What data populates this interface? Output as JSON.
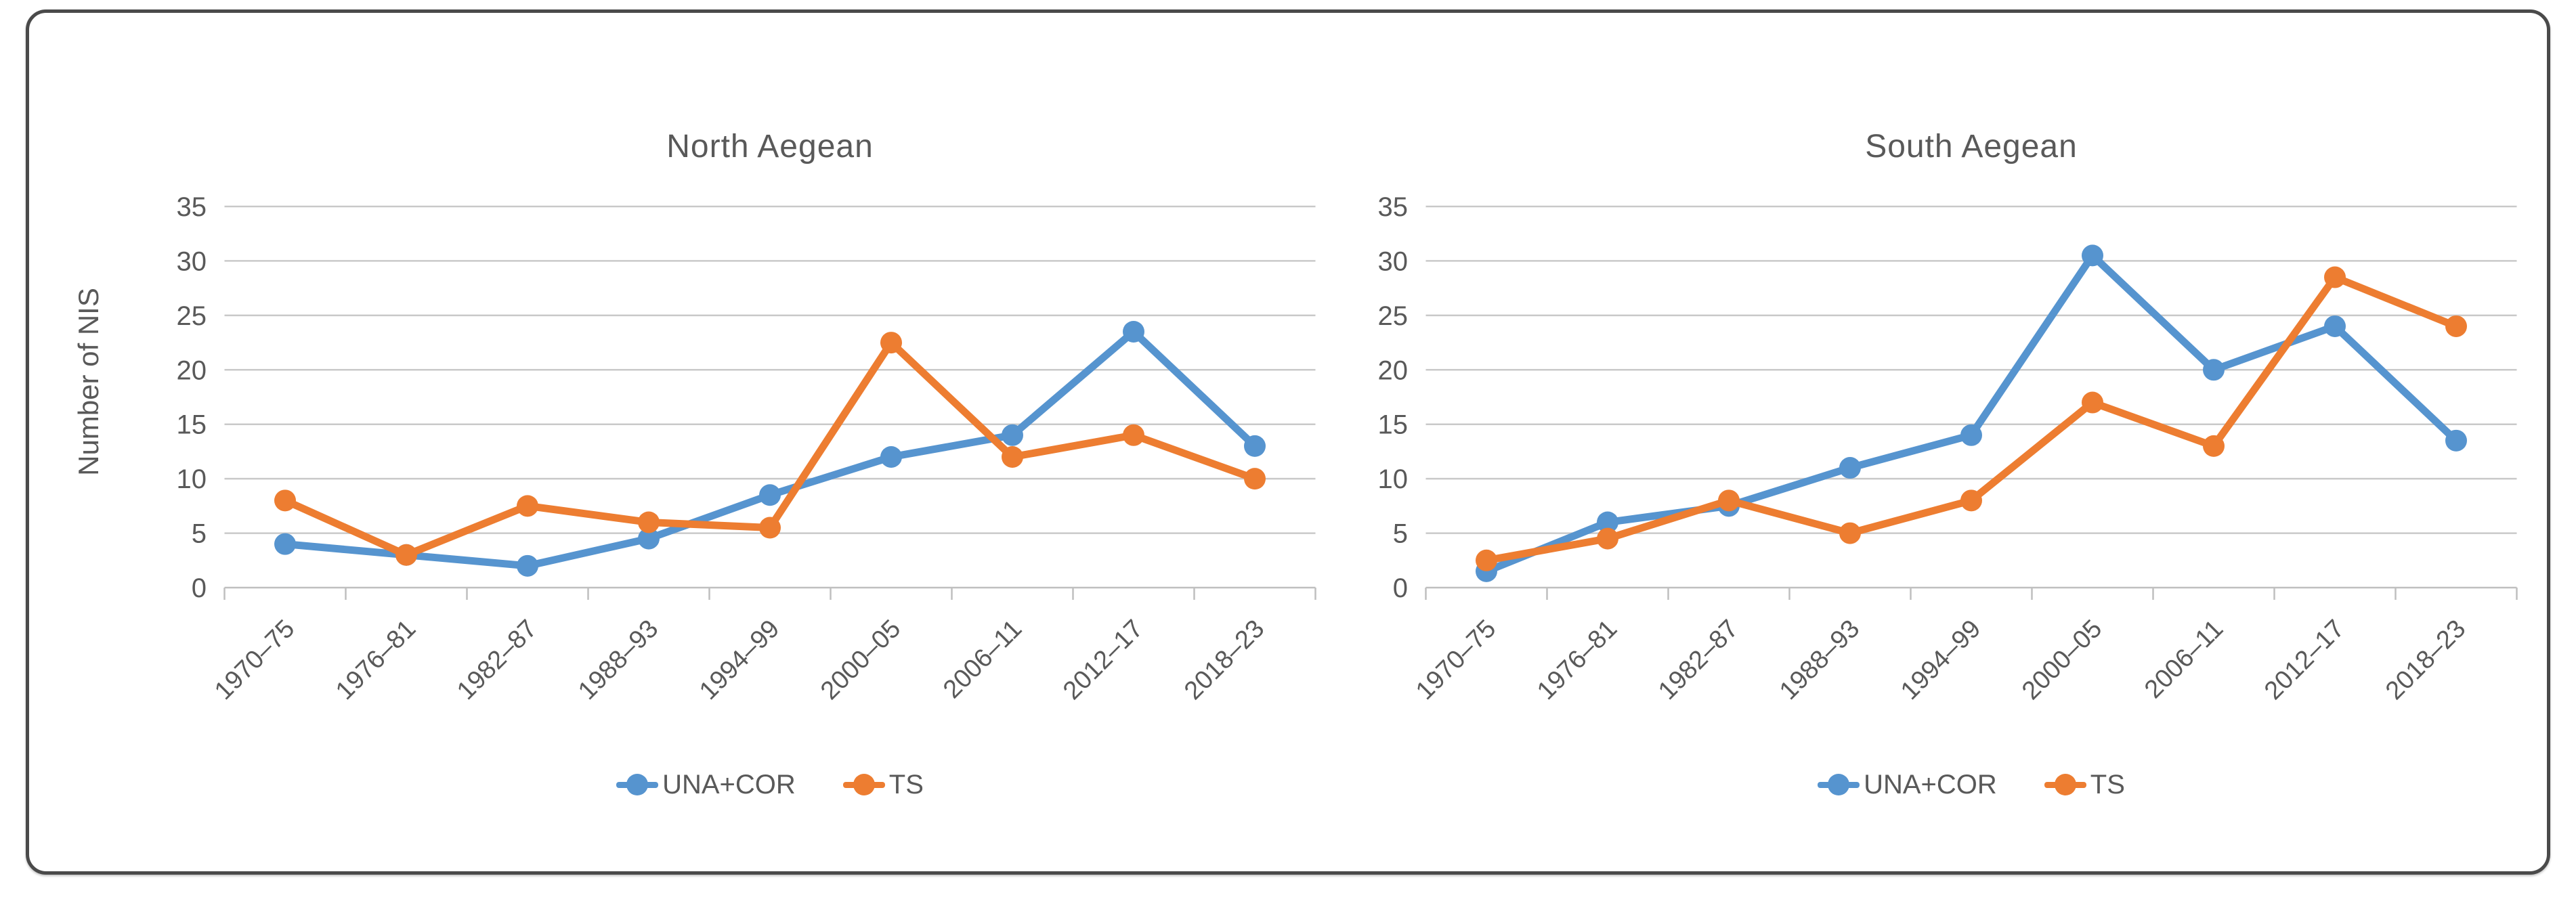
{
  "figure": {
    "background": "#FFFFFF",
    "border_color": "#4A4A4A"
  },
  "colors": {
    "una_cor": "#5694CF",
    "ts": "#ED7D31",
    "text": "#595959",
    "gridline": "#C9C9C9",
    "axis": "#BFBFBF"
  },
  "y_axis": {
    "title": "Number of NIS",
    "ticks": [
      35,
      30,
      25,
      20,
      15,
      10,
      5,
      0
    ],
    "min": 0,
    "max": 35,
    "step": 5
  },
  "chart_data": [
    {
      "type": "line",
      "title": "North Aegean",
      "categories": [
        "1970–75",
        "1976–81",
        "1982–87",
        "1988–93",
        "1994–99",
        "2000–05",
        "2006–11",
        "2012–17",
        "2018–23"
      ],
      "series": [
        {
          "name": "UNA+COR",
          "color": "#5694CF",
          "values": [
            4,
            3,
            2,
            4.5,
            8.5,
            12,
            14,
            23.5,
            13
          ]
        },
        {
          "name": "TS",
          "color": "#ED7D31",
          "values": [
            8,
            3,
            7.5,
            6,
            5.5,
            22.5,
            12,
            14,
            10
          ]
        }
      ],
      "xlabel": "",
      "ylabel": "Number of NIS",
      "ylim": [
        0,
        35
      ],
      "grid": true,
      "legend_position": "bottom"
    },
    {
      "type": "line",
      "title": "South Aegean",
      "categories": [
        "1970–75",
        "1976–81",
        "1982–87",
        "1988–93",
        "1994–99",
        "2000–05",
        "2006–11",
        "2012–17",
        "2018–23"
      ],
      "series": [
        {
          "name": "UNA+COR",
          "color": "#5694CF",
          "values": [
            1.5,
            6,
            7.5,
            11,
            14,
            30.5,
            20,
            24,
            13.5
          ]
        },
        {
          "name": "TS",
          "color": "#ED7D31",
          "values": [
            2.5,
            4.5,
            8,
            5,
            8,
            17,
            13,
            28.5,
            24
          ]
        }
      ],
      "xlabel": "",
      "ylabel": "",
      "ylim": [
        0,
        35
      ],
      "grid": true,
      "legend_position": "bottom"
    }
  ]
}
